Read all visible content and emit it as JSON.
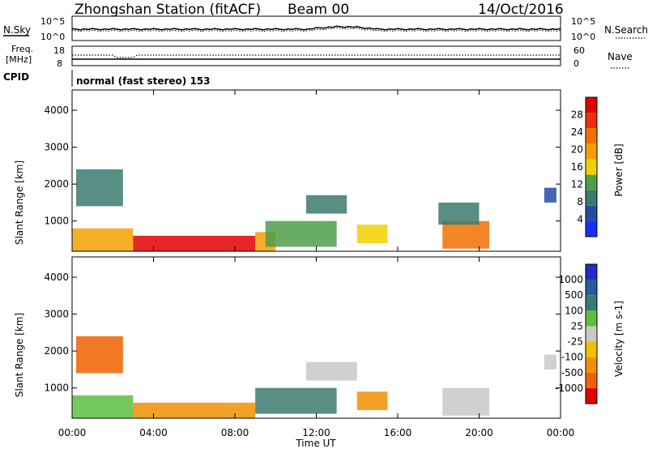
{
  "header": {
    "station": "Zhongshan Station (fitACF)",
    "beam": "Beam 00",
    "date": "14/Oct/2016"
  },
  "noise_panel": {
    "left_label": "N.Sky",
    "right_label": "N.Search",
    "left_ticks": [
      "10^5",
      "10^0"
    ],
    "right_ticks": [
      "10^5",
      "10^0"
    ]
  },
  "freq_panel": {
    "left_label_1": "Freq.",
    "left_label_2": "[MHz]",
    "left_ticks": [
      "18",
      "8"
    ],
    "right_label": "Nave",
    "right_ticks": [
      "60",
      "0"
    ]
  },
  "cpid": {
    "label": "CPID",
    "mode_text": "normal (fast stereo) 153"
  },
  "x_axis": {
    "label": "Time UT",
    "ticks": [
      "00:00",
      "04:00",
      "08:00",
      "12:00",
      "16:00",
      "20:00",
      "00:00"
    ]
  },
  "colors": {
    "power": [
      "#1a2cff",
      "#244aa4",
      "#3b7a6e",
      "#4e9e4a",
      "#f0d000",
      "#f5a000",
      "#f07000",
      "#e83010",
      "#e00000"
    ],
    "velocity": [
      "#2030c0",
      "#2a5aa0",
      "#3b7a6e",
      "#5cc040",
      "#c8c8c8",
      "#f0c000",
      "#f09000",
      "#f06000",
      "#e00000"
    ]
  },
  "chart_data": [
    {
      "type": "heatmap",
      "title": "Power",
      "ylabel": "Slant Range [km]",
      "xlabel": "Time UT",
      "x_range_hours": [
        0,
        24
      ],
      "ylim": [
        180,
        4550
      ],
      "yticks": [
        "1000",
        "2000",
        "3000",
        "4000"
      ],
      "colorbar": {
        "label": "Power [dB]",
        "ticks": [
          "4",
          "8",
          "12",
          "16",
          "20",
          "24",
          "28"
        ],
        "range": [
          0,
          30
        ]
      },
      "regions": [
        {
          "t": [
            0.0,
            3.0
          ],
          "r": [
            180,
            800
          ],
          "level": 5
        },
        {
          "t": [
            3.0,
            9.0
          ],
          "r": [
            180,
            600
          ],
          "level": 8
        },
        {
          "t": [
            9.0,
            10.0
          ],
          "r": [
            180,
            700
          ],
          "level": 5
        },
        {
          "t": [
            9.5,
            13.0
          ],
          "r": [
            300,
            1000
          ],
          "level": 3
        },
        {
          "t": [
            11.5,
            13.5
          ],
          "r": [
            1200,
            1700
          ],
          "level": 2
        },
        {
          "t": [
            0.2,
            2.5
          ],
          "r": [
            1400,
            2400
          ],
          "level": 2
        },
        {
          "t": [
            14.0,
            15.5
          ],
          "r": [
            400,
            900
          ],
          "level": 4
        },
        {
          "t": [
            18.2,
            20.5
          ],
          "r": [
            250,
            1000
          ],
          "level": 6
        },
        {
          "t": [
            18.0,
            20.0
          ],
          "r": [
            900,
            1500
          ],
          "level": 2
        },
        {
          "t": [
            23.2,
            23.8
          ],
          "r": [
            1500,
            1900
          ],
          "level": 1
        }
      ]
    },
    {
      "type": "heatmap",
      "title": "Velocity",
      "ylabel": "Slant Range [km]",
      "xlabel": "Time UT",
      "x_range_hours": [
        0,
        24
      ],
      "ylim": [
        180,
        4550
      ],
      "yticks": [
        "1000",
        "2000",
        "3000",
        "4000"
      ],
      "colorbar": {
        "label": "Velocity [m s-1]",
        "ticks": [
          "1000",
          "500",
          "100",
          "25",
          "-25",
          "-100",
          "-500",
          "-1000"
        ],
        "range": [
          -1000,
          1000
        ]
      },
      "regions": [
        {
          "t": [
            0.0,
            3.0
          ],
          "r": [
            180,
            800
          ],
          "level": 3
        },
        {
          "t": [
            3.0,
            9.0
          ],
          "r": [
            180,
            600
          ],
          "level": 6
        },
        {
          "t": [
            9.0,
            13.0
          ],
          "r": [
            300,
            1000
          ],
          "level": 2
        },
        {
          "t": [
            0.2,
            2.5
          ],
          "r": [
            1400,
            2400
          ],
          "level": 7
        },
        {
          "t": [
            11.5,
            14.0
          ],
          "r": [
            1200,
            1700
          ],
          "level": 4
        },
        {
          "t": [
            14.0,
            15.5
          ],
          "r": [
            400,
            900
          ],
          "level": 6
        },
        {
          "t": [
            18.2,
            20.5
          ],
          "r": [
            250,
            1000
          ],
          "level": 4
        },
        {
          "t": [
            23.2,
            23.8
          ],
          "r": [
            1500,
            1900
          ],
          "level": 4
        }
      ]
    }
  ]
}
